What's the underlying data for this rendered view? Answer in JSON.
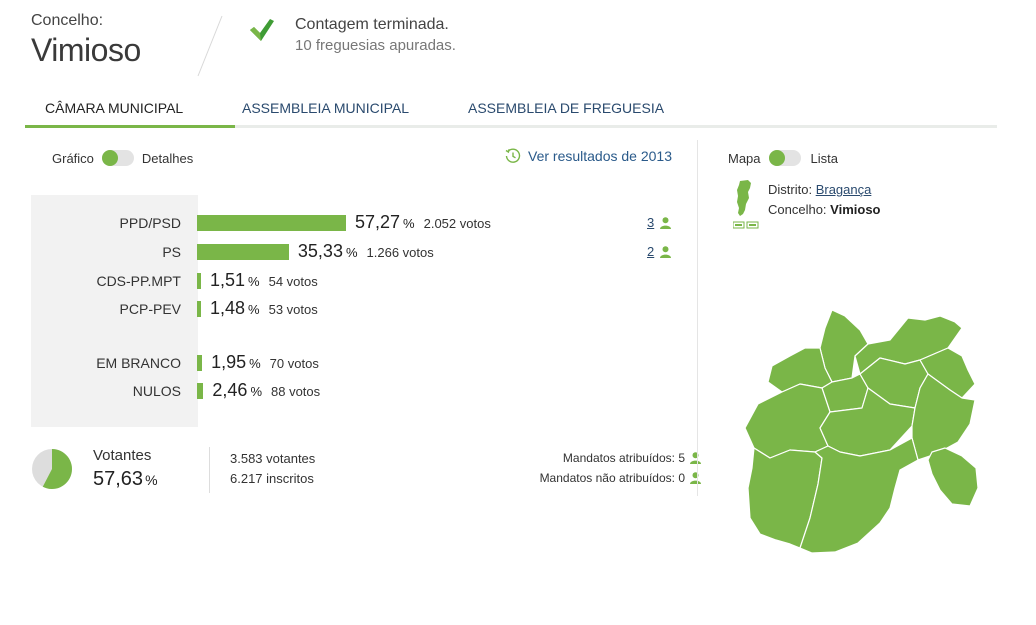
{
  "header": {
    "label": "Concelho:",
    "name": "Vimioso",
    "status_title": "Contagem terminada.",
    "status_subtitle": "10 freguesias apuradas."
  },
  "tabs": [
    {
      "label": "CÂMARA MUNICIPAL",
      "active": true
    },
    {
      "label": "ASSEMBLEIA MUNICIPAL",
      "active": false
    },
    {
      "label": "ASSEMBLEIA DE FREGUESIA",
      "active": false
    }
  ],
  "view_toggle": {
    "left": "Gráfico",
    "right": "Detalhes",
    "selected": "Gráfico"
  },
  "history_link": "Ver resultados de 2013",
  "map_toggle": {
    "left": "Mapa",
    "right": "Lista",
    "selected": "Mapa"
  },
  "results": [
    {
      "party": "PPD/PSD",
      "pct": "57,27",
      "pct_value": 57.27,
      "votes": "2.052 votos",
      "seats": "3"
    },
    {
      "party": "PS",
      "pct": "35,33",
      "pct_value": 35.33,
      "votes": "1.266 votos",
      "seats": "2"
    },
    {
      "party": "CDS-PP.MPT",
      "pct": "1,51",
      "pct_value": 1.51,
      "votes": "54 votos",
      "seats": ""
    },
    {
      "party": "PCP-PEV",
      "pct": "1,48",
      "pct_value": 1.48,
      "votes": "53 votos",
      "seats": ""
    },
    {
      "party": "EM BRANCO",
      "pct": "1,95",
      "pct_value": 1.95,
      "votes": "70 votos",
      "seats": ""
    },
    {
      "party": "NULOS",
      "pct": "2,46",
      "pct_value": 2.46,
      "votes": "88 votos",
      "seats": ""
    }
  ],
  "percent_symbol": "%",
  "turnout": {
    "label": "Votantes",
    "pct": "57,63",
    "pct_value": 57.63,
    "voters": "3.583 votantes",
    "registered": "6.217 inscritos"
  },
  "mandates": {
    "assigned": "Mandatos atribuídos: 5",
    "unassigned": "Mandatos não atribuídos: 0"
  },
  "district_info": {
    "district_label": "Distrito:",
    "district_name": "Bragança",
    "concelho_label": "Concelho:",
    "concelho_name": "Vimioso"
  },
  "colors": {
    "accent": "#7ab648",
    "link": "#2a4a6e",
    "map_border": "#ffffff",
    "pie_rest": "#dddddd"
  },
  "icons": {
    "status": "checkmark-icon",
    "history": "history-clock-icon",
    "seats": "person-icon",
    "district": "portugal-map-icon"
  }
}
